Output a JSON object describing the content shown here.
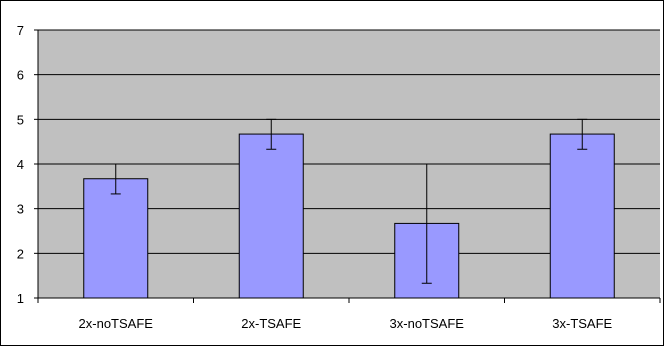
{
  "chart_data": {
    "type": "bar",
    "categories": [
      "2x-noTSAFE",
      "2x-TSAFE",
      "3x-noTSAFE",
      "3x-TSAFE"
    ],
    "values": [
      3.67,
      4.67,
      2.67,
      4.67
    ],
    "error_low": [
      3.33,
      4.33,
      1.33,
      4.33
    ],
    "error_high": [
      4.0,
      5.0,
      4.0,
      5.0
    ],
    "ylim": [
      1,
      7
    ],
    "yticks": [
      1,
      2,
      3,
      4,
      5,
      6,
      7
    ],
    "grid": true,
    "legend": "none",
    "colors": {
      "bar_fill": "#9999ff",
      "bar_stroke": "#000000",
      "plot_background": "#c0c0c0",
      "gridline": "#000000"
    }
  }
}
